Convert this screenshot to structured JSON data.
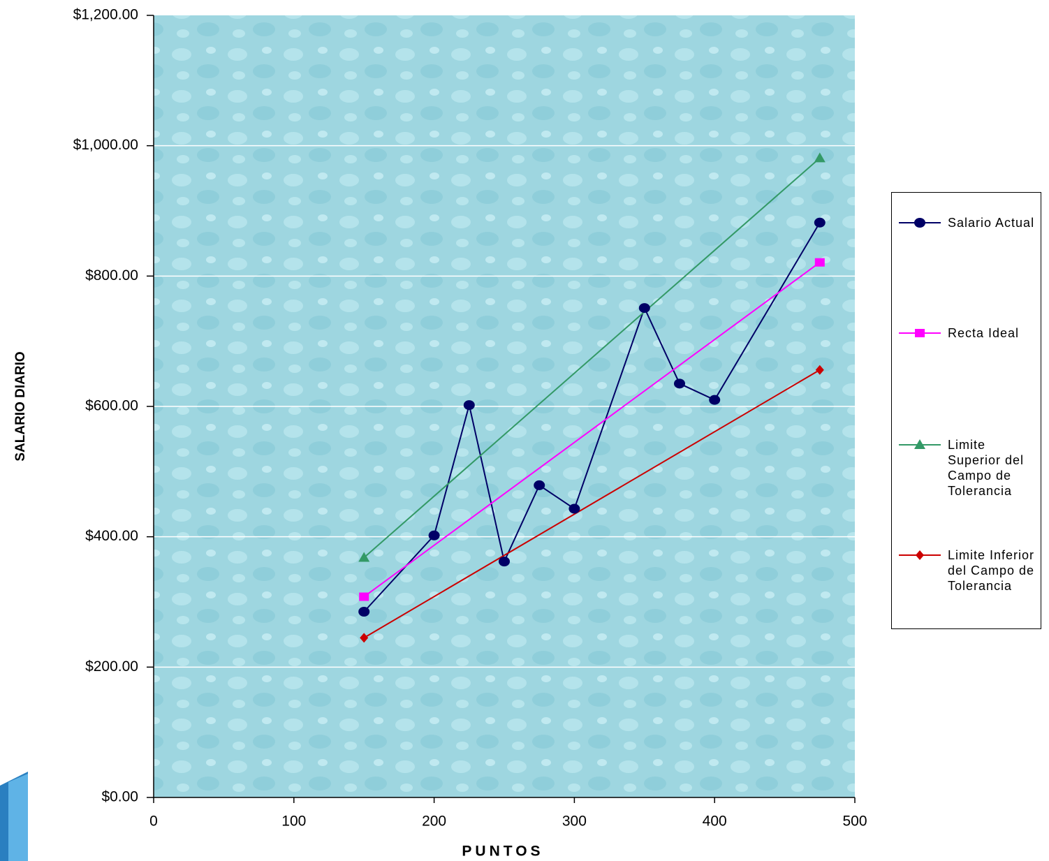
{
  "chart_data": {
    "type": "line",
    "xlabel": "PUNTOS",
    "ylabel": "SALARIO DIARIO",
    "xlim": [
      0,
      500
    ],
    "xticks": [
      0,
      100,
      200,
      300,
      400,
      500
    ],
    "ylim": [
      0,
      1200
    ],
    "yticks": [
      {
        "value": 0,
        "label": "$0.00"
      },
      {
        "value": 200,
        "label": "$200.00"
      },
      {
        "value": 400,
        "label": "$400.00"
      },
      {
        "value": 600,
        "label": "$600.00"
      },
      {
        "value": 800,
        "label": "$800.00"
      },
      {
        "value": 1000,
        "label": "$1,000.00"
      },
      {
        "value": 1200,
        "label": "$1,200.00"
      }
    ],
    "grid": true,
    "legend": "right",
    "series": [
      {
        "name": "Salario Actual",
        "color": "#000066",
        "marker": "circle",
        "x": [
          150,
          200,
          225,
          250,
          275,
          300,
          350,
          375,
          400,
          475
        ],
        "values": [
          285,
          402,
          602,
          362,
          479,
          443,
          751,
          635,
          610,
          882
        ]
      },
      {
        "name": "Recta Ideal",
        "color": "#ff00ff",
        "marker": "square",
        "x": [
          150,
          475
        ],
        "values": [
          308,
          821
        ]
      },
      {
        "name": "Limite Superior del Campo de Tolerancia",
        "color": "#339966",
        "marker": "triangle",
        "x": [
          150,
          475
        ],
        "values": [
          368,
          981
        ]
      },
      {
        "name": "Limite Inferior del Campo de Tolerancia",
        "color": "#cc0000",
        "marker": "diamond",
        "x": [
          150,
          475
        ],
        "values": [
          245,
          656
        ]
      }
    ]
  }
}
